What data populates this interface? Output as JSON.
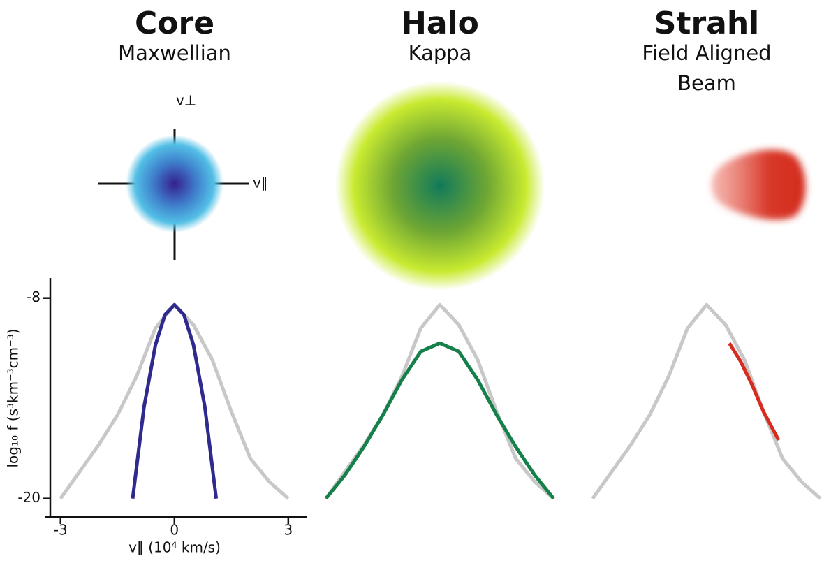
{
  "chart_data": [
    {
      "type": "line",
      "title": "Core",
      "subtitle": "Maxwellian",
      "annotations": [
        "v⊥",
        "v∥"
      ],
      "x_label": "v∥ (10⁴ km/s)",
      "y_label": "log₁₀ f (s³km⁻³cm⁻³)",
      "xlim": [
        -3.4,
        3.5
      ],
      "ylim": [
        -6.8,
        -21.1
      ],
      "xticks": [
        -3,
        0,
        3
      ],
      "yticks": [
        -8,
        -20
      ],
      "series": [
        {
          "color": "#c8c8c8",
          "x": [
            -3,
            -2.5,
            -2,
            -1.5,
            -1,
            -0.5,
            0,
            0.5,
            1,
            1.5,
            2,
            2.5,
            3
          ],
          "values": [
            -20,
            -18.4,
            -16.8,
            -15.0,
            -12.7,
            -9.8,
            -8.4,
            -9.6,
            -11.7,
            -14.8,
            -17.6,
            -19.0,
            -20
          ]
        },
        {
          "color": "#2e2a8e",
          "x": [
            -1.1,
            -0.8,
            -0.5,
            -0.25,
            0,
            0.25,
            0.5,
            0.8,
            1.1
          ],
          "values": [
            -20,
            -14.5,
            -10.8,
            -9.0,
            -8.4,
            -9.0,
            -10.8,
            -14.5,
            -20
          ]
        }
      ]
    },
    {
      "type": "line",
      "title": "Halo",
      "subtitle": "Kappa",
      "xlim": [
        -3.4,
        3.5
      ],
      "ylim": [
        -6.8,
        -21.1
      ],
      "series": [
        {
          "color": "#c8c8c8",
          "x": [
            -3,
            -2.5,
            -2,
            -1.5,
            -1,
            -0.5,
            0,
            0.5,
            1,
            1.5,
            2,
            2.5,
            3
          ],
          "values": [
            -20,
            -18.4,
            -16.8,
            -15.0,
            -12.7,
            -9.8,
            -8.4,
            -9.6,
            -11.7,
            -14.8,
            -17.6,
            -19.0,
            -20
          ]
        },
        {
          "color": "#16804a",
          "x": [
            -3,
            -2.5,
            -2,
            -1.5,
            -1,
            -0.5,
            0,
            0.5,
            1,
            1.5,
            2,
            2.5,
            3
          ],
          "values": [
            -20,
            -18.6,
            -16.9,
            -15.0,
            -12.9,
            -11.2,
            -10.7,
            -11.2,
            -12.9,
            -15.0,
            -16.9,
            -18.6,
            -20
          ]
        }
      ]
    },
    {
      "type": "line",
      "title": "Strahl",
      "subtitle": [
        "Field Aligned",
        "Beam"
      ],
      "xlim": [
        -3.4,
        3.5
      ],
      "ylim": [
        -6.8,
        -21.1
      ],
      "series": [
        {
          "color": "#c8c8c8",
          "x": [
            -3,
            -2.5,
            -2,
            -1.5,
            -1,
            -0.5,
            0,
            0.5,
            1,
            1.5,
            2,
            2.5,
            3
          ],
          "values": [
            -20,
            -18.4,
            -16.8,
            -15.0,
            -12.7,
            -9.8,
            -8.4,
            -9.6,
            -11.7,
            -14.8,
            -17.6,
            -19.0,
            -20
          ]
        },
        {
          "color": "#d62d20",
          "x": [
            0.6,
            0.9,
            1.2,
            1.5,
            1.9
          ],
          "values": [
            -10.7,
            -11.8,
            -13.2,
            -14.8,
            -16.5
          ]
        }
      ]
    }
  ]
}
